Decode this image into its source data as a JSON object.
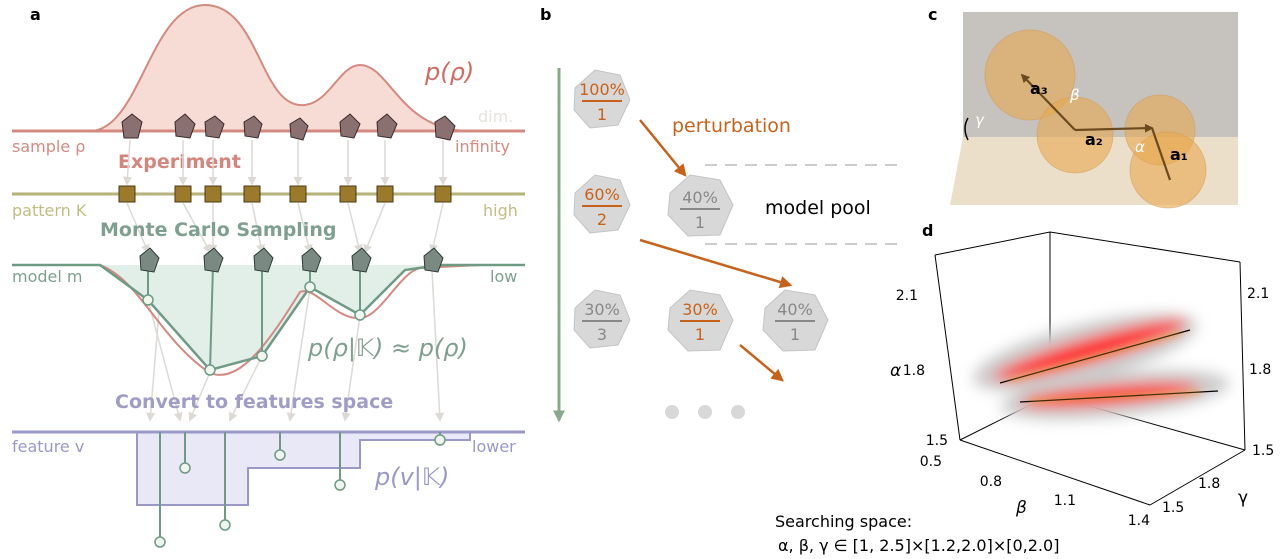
{
  "panel_a": {
    "label": "a",
    "density": "p(ρ)",
    "dim_label": "dim.",
    "infinity": "infinity",
    "sample": "sample ρ",
    "experiment": "Experiment",
    "pattern": "pattern K",
    "high": "high",
    "monte_carlo": "Monte Carlo Sampling",
    "model": "model m",
    "low": "low",
    "approx": "p(ρ|𝕂) ≈ p(ρ)",
    "convert": "Convert to features space",
    "feature": "feature v",
    "lower": "lower",
    "feature_density": "p(v|𝕂)"
  },
  "panel_b": {
    "label": "b",
    "perturbation": "perturbation",
    "model_pool": "model pool",
    "models": [
      {
        "top": "100%",
        "bottom": "1"
      },
      {
        "top": "60%",
        "bottom": "2"
      },
      {
        "top": "40%",
        "bottom": "1"
      },
      {
        "top": "30%",
        "bottom": "3"
      },
      {
        "top": "30%",
        "bottom": "1"
      },
      {
        "top": "40%",
        "bottom": "1"
      }
    ]
  },
  "panel_c": {
    "label": "c",
    "vectors": [
      "a₃",
      "a₂",
      "a₁"
    ],
    "angles": [
      "β",
      "γ",
      "α"
    ]
  },
  "panel_d": {
    "label": "d",
    "left_ticks": [
      "2.1",
      "1.8",
      "1.5"
    ],
    "right_ticks": [
      "2.1",
      "1.8",
      "1.5"
    ],
    "alpha": "α",
    "beta_ticks": [
      "0.5",
      "0.8",
      "1.1",
      "1.4"
    ],
    "beta": "β",
    "gamma_ticks": [
      "1.5",
      "1.8"
    ],
    "gamma": "γ",
    "search_title": "Searching space:",
    "search_range": "α, β, γ ∈ [1, 2.5]×[1.2,2.0]×[0,2.0]"
  }
}
